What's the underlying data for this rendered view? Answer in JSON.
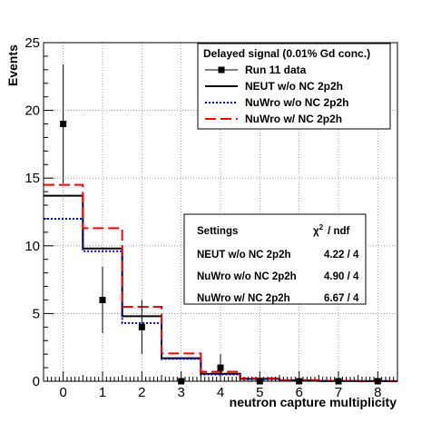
{
  "chart_data": {
    "type": "line",
    "xlabel": "neutron capture multiplicity",
    "ylabel": "Events",
    "xlim": [
      -0.5,
      8.5
    ],
    "ylim": [
      0,
      25
    ],
    "x_ticks": [
      0,
      1,
      2,
      3,
      4,
      5,
      6,
      7,
      8
    ],
    "y_ticks": [
      0,
      5,
      10,
      15,
      20,
      25
    ],
    "grid": true,
    "legend": {
      "title": "Delayed signal (0.01% Gd conc.)",
      "placement": "top-right"
    },
    "bin_edges": [
      -0.5,
      0.5,
      1.5,
      2.5,
      3.5,
      4.5,
      5.5,
      6.5,
      7.5,
      8.5
    ],
    "data": {
      "name": "Run 11 data",
      "x": [
        0,
        1,
        2,
        3,
        4,
        5,
        6,
        7,
        8
      ],
      "y": [
        19,
        6,
        4,
        0,
        1,
        0,
        0,
        0,
        0
      ],
      "err": [
        4.4,
        2.45,
        2.0,
        0,
        1.0,
        0,
        0,
        0,
        0
      ],
      "color": "#000000"
    },
    "series": [
      {
        "name": "NEUT w/o NC 2p2h",
        "values": [
          13.7,
          9.8,
          4.8,
          1.7,
          0.55,
          0.18,
          0.07,
          0.02,
          0.01
        ],
        "color": "#000000",
        "style": "solid"
      },
      {
        "name": "NuWro w/o NC 2p2h",
        "values": [
          12.0,
          9.6,
          4.3,
          1.65,
          0.5,
          0.17,
          0.06,
          0.02,
          0.01
        ],
        "color": "#0000dd",
        "style": "dotted"
      },
      {
        "name": "NuWro w/ NC 2p2h",
        "values": [
          14.5,
          11.3,
          5.5,
          2.05,
          0.7,
          0.22,
          0.08,
          0.03,
          0.01
        ],
        "color": "#ff0000",
        "style": "dashed"
      }
    ],
    "settings": {
      "header_label": "Settings",
      "header_stat": "χ",
      "header_stat_sup": "2",
      "header_stat_rest": "/  ndf",
      "rows": [
        {
          "label": "NEUT w/o  NC 2p2h",
          "value": "4.22 / 4"
        },
        {
          "label": "NuWro w/o NC 2p2h",
          "value": "4.90 / 4"
        },
        {
          "label": "NuWro w/  NC 2p2h",
          "value": "6.67 / 4"
        }
      ]
    }
  }
}
